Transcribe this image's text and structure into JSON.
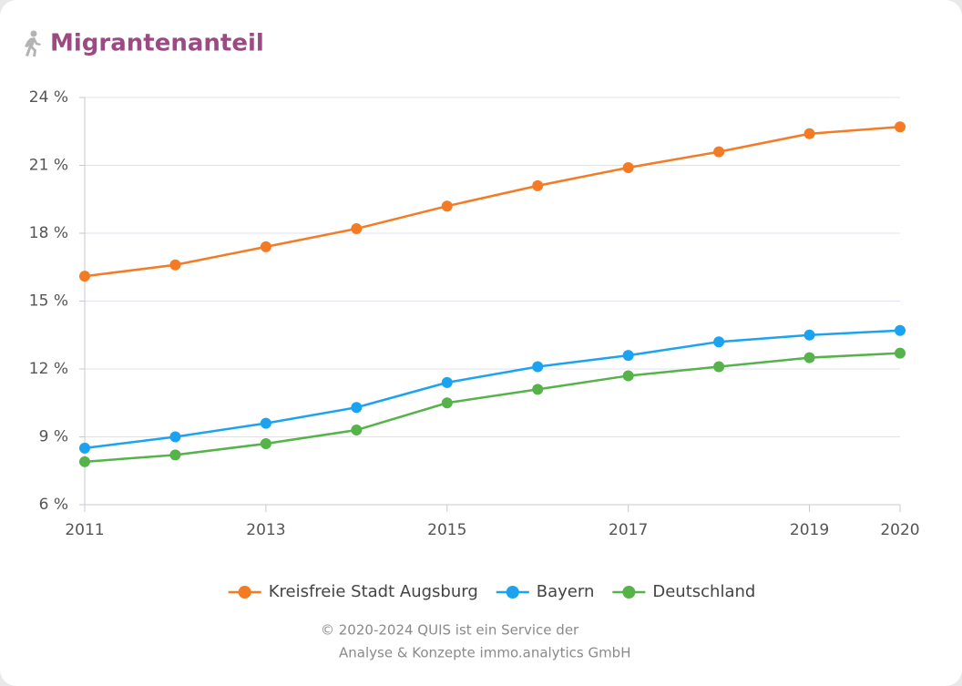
{
  "chart_data": {
    "type": "line",
    "title": "Migrantenanteil",
    "x": [
      2011,
      2012,
      2013,
      2014,
      2015,
      2016,
      2017,
      2018,
      2019,
      2020
    ],
    "xlim": [
      2011,
      2020
    ],
    "xticks": [
      2011,
      2013,
      2015,
      2017,
      2019,
      2020
    ],
    "ylim": [
      6,
      24
    ],
    "yticks": [
      {
        "value": 6,
        "label": "6 %"
      },
      {
        "value": 9,
        "label": "9 %"
      },
      {
        "value": 12,
        "label": "12 %"
      },
      {
        "value": 15,
        "label": "15 %"
      },
      {
        "value": 18,
        "label": "18 %"
      },
      {
        "value": 21,
        "label": "21 %"
      },
      {
        "value": 24,
        "label": "24 %"
      }
    ],
    "grid": true,
    "legend": "bottom",
    "series": [
      {
        "name": "Kreisfreie Stadt Augsburg",
        "color": "#f47a24",
        "values": [
          16.1,
          16.6,
          17.4,
          18.2,
          19.2,
          20.1,
          20.9,
          21.6,
          22.4,
          22.7
        ]
      },
      {
        "name": "Bayern",
        "color": "#1ba3f2",
        "values": [
          8.5,
          9.0,
          9.6,
          10.3,
          11.4,
          12.1,
          12.6,
          13.2,
          13.5,
          13.7
        ]
      },
      {
        "name": "Deutschland",
        "color": "#55b34a",
        "values": [
          7.9,
          8.2,
          8.7,
          9.3,
          10.5,
          11.1,
          11.7,
          12.1,
          12.5,
          12.7
        ]
      }
    ]
  },
  "footer": [
    "© 2020-2024 QUIS ist ein Service der",
    "Analyse & Konzepte immo.analytics GmbH"
  ]
}
